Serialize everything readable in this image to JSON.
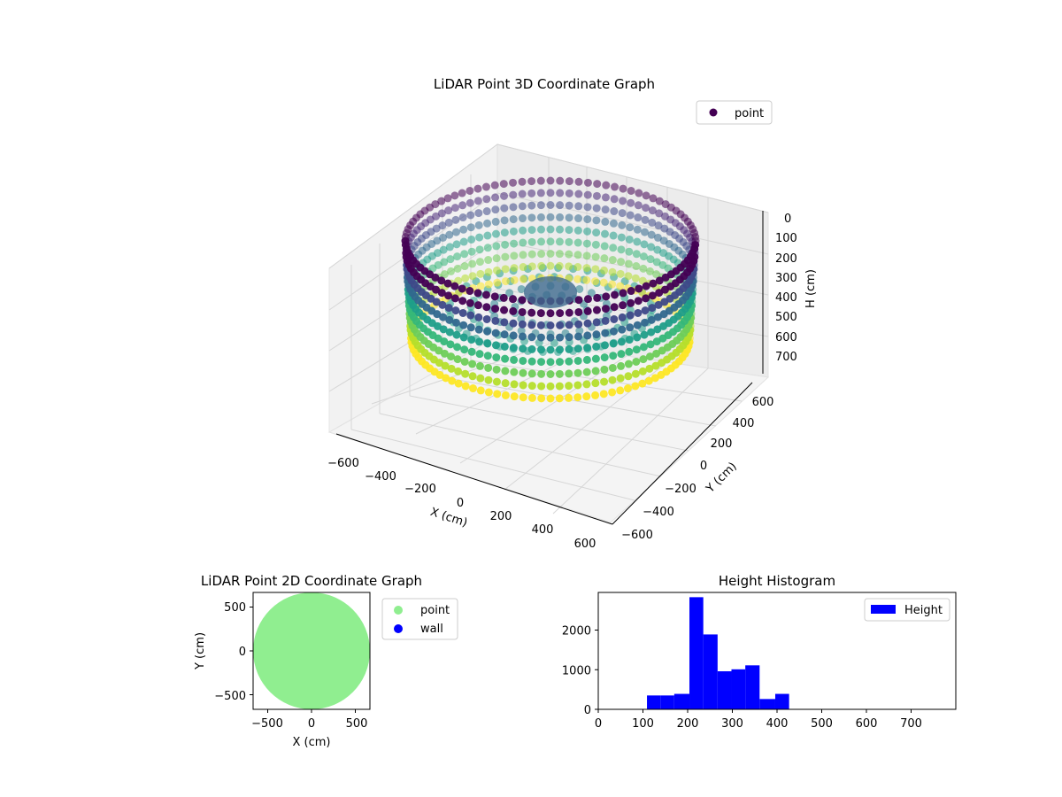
{
  "chart_data": [
    {
      "type": "scatter3d",
      "title": "LiDAR Point 3D Coordinate Graph",
      "xlabel": "X (cm)",
      "ylabel": "Y (cm)",
      "zlabel": "H (cm)",
      "xticks": [
        "−600",
        "−400",
        "−200",
        "0",
        "200",
        "400",
        "600"
      ],
      "yticks": [
        "−600",
        "−400",
        "−200",
        "0",
        "200",
        "400",
        "600"
      ],
      "zticks": [
        "0",
        "100",
        "200",
        "300",
        "400",
        "500",
        "600",
        "700"
      ],
      "xlim": [
        -650,
        650
      ],
      "ylim": [
        -650,
        650
      ],
      "zlim": [
        780,
        0
      ],
      "zaxis_inverted": true,
      "colormap": "viridis",
      "legend": {
        "placement": "top-right",
        "entries": [
          {
            "label": "point",
            "color": "#440154"
          }
        ]
      },
      "description_series": {
        "name": "point",
        "outer_wall_radius": 600,
        "wall_height_range": [
          0,
          720
        ],
        "floor_height_range": [
          200,
          420
        ]
      },
      "grid": true
    },
    {
      "type": "scatter",
      "title": "LiDAR Point 2D Coordinate Graph",
      "xlabel": "X (cm)",
      "ylabel": "Y (cm)",
      "xticks": [
        "−500",
        "0",
        "500"
      ],
      "yticks": [
        "500",
        "0",
        "−500"
      ],
      "xlim": [
        -600,
        600
      ],
      "ylim": [
        -600,
        600
      ],
      "legend": {
        "placement": "outside-right",
        "entries": [
          {
            "label": "point",
            "color": "#90ee90"
          },
          {
            "label": "wall",
            "color": "#0000ff"
          }
        ]
      },
      "series": [
        {
          "name": "point",
          "color": "#90ee90",
          "shape": "filled disc",
          "radius": 600
        }
      ],
      "grid": false
    },
    {
      "type": "bar",
      "title": "Height Histogram",
      "xlabel": "",
      "ylabel": "",
      "xticks": [
        "0",
        "100",
        "200",
        "300",
        "400",
        "500",
        "600",
        "700"
      ],
      "yticks": [
        "0",
        "1000",
        "2000"
      ],
      "xlim": [
        0,
        800
      ],
      "ylim": [
        0,
        2950
      ],
      "legend": {
        "placement": "top-right",
        "entries": [
          {
            "label": "Height",
            "color": "#0000ff"
          }
        ]
      },
      "bin_edges": [
        109,
        140,
        170,
        204,
        235,
        267,
        298,
        329,
        361,
        396,
        427
      ],
      "values": [
        350,
        350,
        390,
        2830,
        1890,
        960,
        1010,
        1110,
        260,
        390
      ],
      "bar_color": "#0000ff",
      "grid": false
    }
  ]
}
